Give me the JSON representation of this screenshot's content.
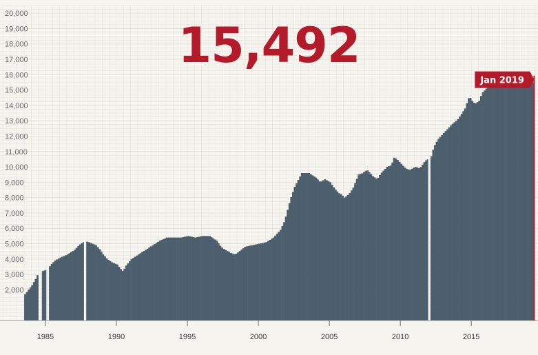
{
  "headline_value": "15,492",
  "latest_label": "Jan 2019",
  "colors": {
    "bars": "#4d5f6d",
    "accent": "#b31b2b",
    "grid": "#e4e1da",
    "background": "#f6f4ef"
  },
  "chart_data": {
    "type": "area",
    "title": "",
    "xlabel": "",
    "ylabel": "",
    "grid": true,
    "xlim": [
      1981.8,
      2019.7
    ],
    "ylim": [
      0,
      20500
    ],
    "y_ticks": [
      "2,000",
      "3,000",
      "4,000",
      "5,000",
      "6,000",
      "7,000",
      "8,000",
      "9,000",
      "10,000",
      "11,000",
      "12,000",
      "13,000",
      "14,000",
      "15,000",
      "16,000",
      "17,000",
      "18,000",
      "19,000",
      "20,000"
    ],
    "y_tick_values": [
      2000,
      3000,
      4000,
      5000,
      6000,
      7000,
      8000,
      9000,
      10000,
      11000,
      12000,
      13000,
      14000,
      15000,
      16000,
      17000,
      18000,
      19000,
      20000
    ],
    "x_ticks": [
      "1985",
      "1990",
      "1995",
      "2000",
      "2005",
      "2010",
      "2015"
    ],
    "x_tick_values": [
      1985,
      1990,
      1995,
      2000,
      2005,
      2010,
      2015
    ],
    "x_start": 1983.5,
    "x_step": 0.125,
    "gaps": [
      [
        1984.4,
        1984.7
      ],
      [
        1985.05,
        1985.15
      ],
      [
        1987.7,
        1987.8
      ],
      [
        2011.95,
        2012.05
      ]
    ],
    "series": [
      {
        "name": "",
        "x": [
          1983.5,
          1983.75,
          1984.0,
          1984.25,
          1984.4,
          1984.7,
          1985.0,
          1985.15,
          1985.3,
          1985.6,
          1986.0,
          1986.5,
          1987.0,
          1987.3,
          1987.6,
          1987.8,
          1988.0,
          1988.5,
          1988.8,
          1989.0,
          1989.3,
          1989.6,
          1990.0,
          1990.2,
          1990.4,
          1990.6,
          1991.0,
          1991.5,
          1992.0,
          1992.5,
          1993.0,
          1993.5,
          1994.0,
          1994.5,
          1995.0,
          1995.5,
          1996.0,
          1996.5,
          1997.0,
          1997.3,
          1997.6,
          1998.0,
          1998.3,
          1998.6,
          1999.0,
          1999.5,
          2000.0,
          2000.5,
          2001.0,
          2001.5,
          2001.8,
          2002.0,
          2002.2,
          2002.5,
          2003.0,
          2003.5,
          2004.0,
          2004.3,
          2004.6,
          2005.0,
          2005.3,
          2005.6,
          2005.8,
          2006.0,
          2006.3,
          2006.6,
          2007.0,
          2007.3,
          2007.6,
          2008.0,
          2008.3,
          2008.6,
          2009.0,
          2009.3,
          2009.5,
          2009.7,
          2010.0,
          2010.3,
          2010.6,
          2011.0,
          2011.3,
          2011.7,
          2012.1,
          2012.3,
          2012.6,
          2013.0,
          2013.5,
          2014.0,
          2014.5,
          2014.8,
          2015.0,
          2015.2,
          2015.5,
          2015.7,
          2016.0,
          2016.5,
          2017.0,
          2017.5,
          2018.0,
          2018.5,
          2019.0,
          2019.3
        ],
        "values": [
          1700,
          2000,
          2300,
          2700,
          3000,
          3200,
          3300,
          3400,
          3600,
          3900,
          4100,
          4300,
          4600,
          4900,
          5100,
          5150,
          5100,
          4900,
          4600,
          4300,
          4000,
          3800,
          3650,
          3400,
          3200,
          3550,
          4000,
          4300,
          4600,
          4900,
          5200,
          5400,
          5400,
          5400,
          5500,
          5400,
          5500,
          5500,
          5200,
          4800,
          4600,
          4400,
          4300,
          4500,
          4800,
          4900,
          5000,
          5100,
          5400,
          5900,
          6500,
          7200,
          7900,
          8700,
          9600,
          9600,
          9300,
          9000,
          9200,
          9000,
          8600,
          8300,
          8200,
          8000,
          8200,
          8600,
          9500,
          9600,
          9800,
          9400,
          9200,
          9600,
          10000,
          10100,
          10600,
          10500,
          10200,
          9900,
          9800,
          10000,
          9900,
          10400,
          10600,
          11300,
          11800,
          12200,
          12700,
          13100,
          13800,
          14600,
          14300,
          14100,
          14300,
          14800,
          15100,
          15300,
          15400,
          15400,
          15400,
          15450,
          15480,
          15492
        ]
      }
    ]
  }
}
